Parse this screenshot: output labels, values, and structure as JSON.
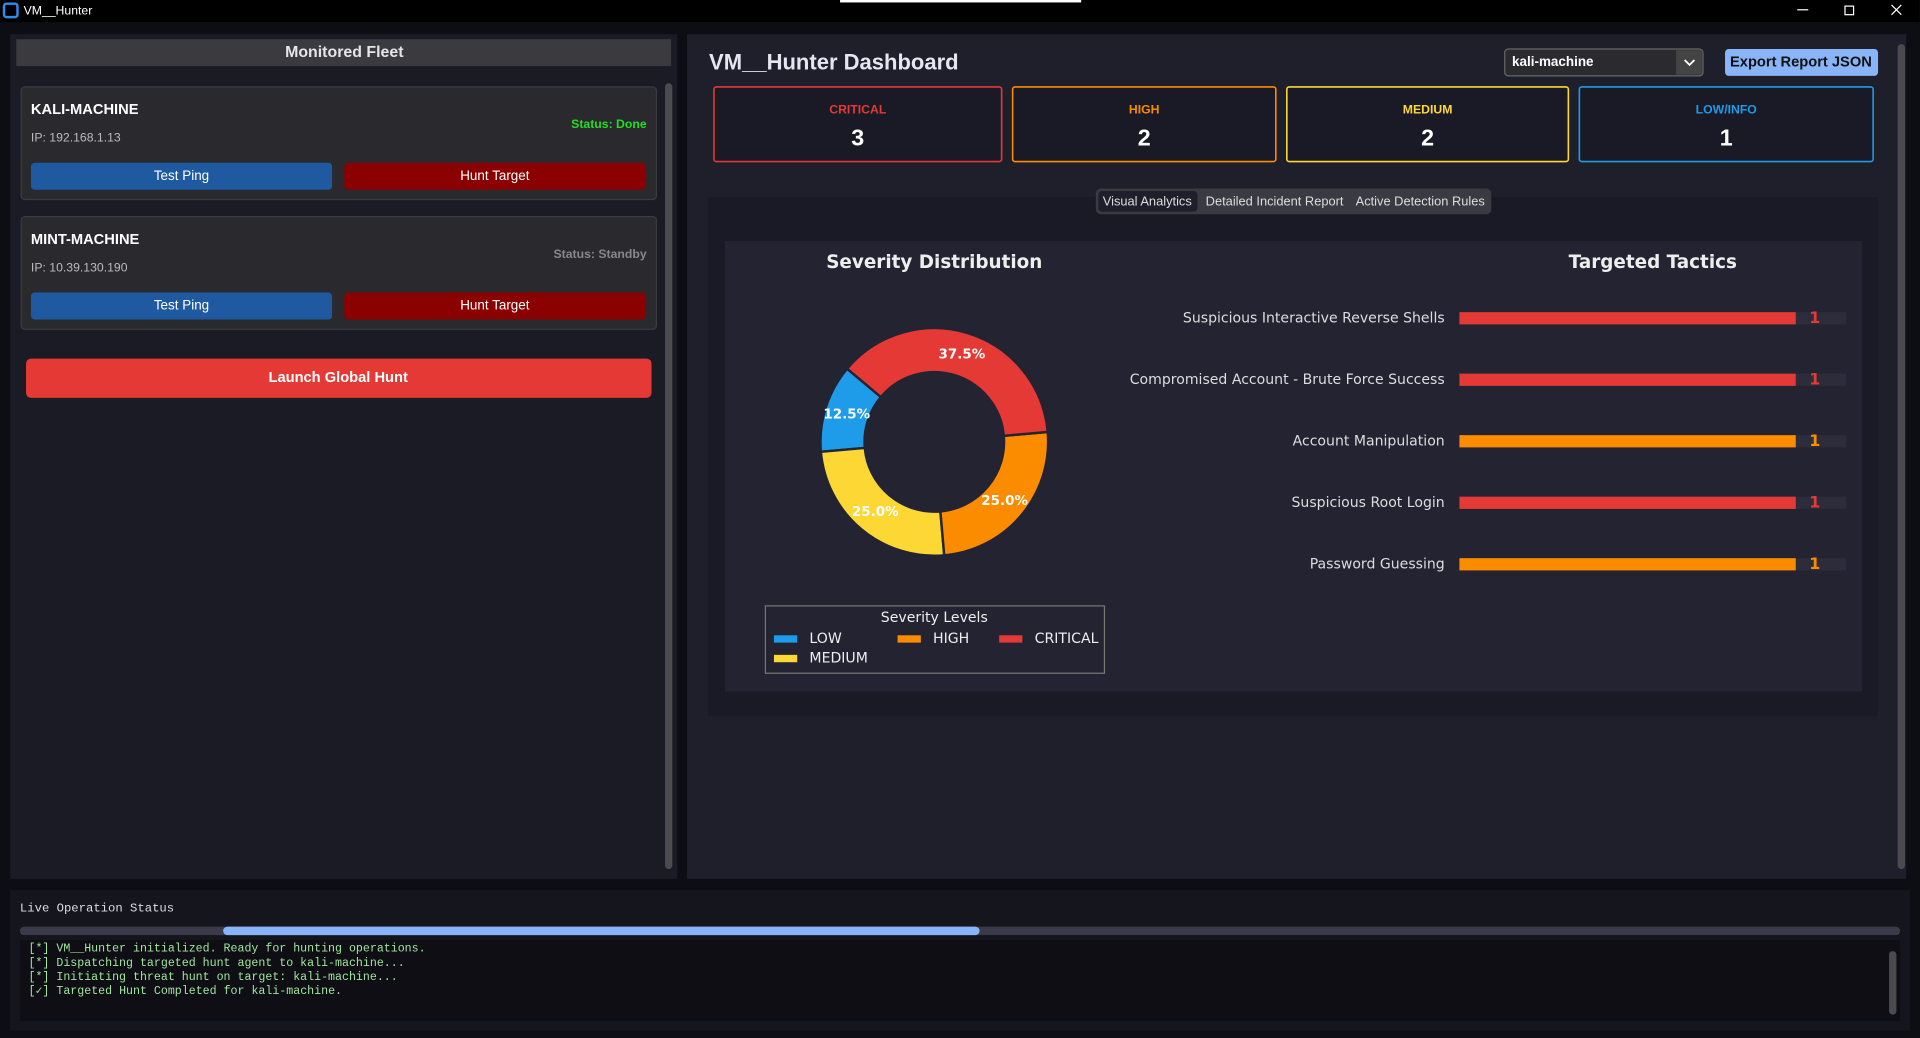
{
  "window": {
    "title": "VM__Hunter"
  },
  "fleet": {
    "title": "Monitored Fleet",
    "machines": [
      {
        "name": "KALI-MACHINE",
        "ip": "IP: 192.168.1.13",
        "status": "Status: Done",
        "ping": "Test Ping",
        "hunt": "Hunt Target"
      },
      {
        "name": "MINT-MACHINE",
        "ip": "IP: 10.39.130.190",
        "status": "Status: Standby",
        "ping": "Test Ping",
        "hunt": "Hunt Target"
      }
    ],
    "launch": "Launch Global Hunt"
  },
  "dashboard": {
    "title": "VM__Hunter Dashboard",
    "target": "kali-machine",
    "export": "Export Report JSON",
    "severity_cards": [
      {
        "label": "CRITICAL",
        "count": 3,
        "color": "#e53935"
      },
      {
        "label": "HIGH",
        "count": 2,
        "color": "#fb8c00"
      },
      {
        "label": "MEDIUM",
        "count": 2,
        "color": "#fdd835"
      },
      {
        "label": "LOW/INFO",
        "count": 1,
        "color": "#1e9be9"
      }
    ],
    "tabs": [
      "Visual Analytics",
      "Detailed Incident Report",
      "Active Detection Rules"
    ]
  },
  "chart_data": [
    {
      "type": "donut",
      "title": "Severity Distribution",
      "categories": [
        "LOW",
        "MEDIUM",
        "HIGH",
        "CRITICAL"
      ],
      "values": [
        12.5,
        25.0,
        25.0,
        37.5
      ],
      "value_labels": [
        "12.5%",
        "25.0%",
        "25.0%",
        "37.5%"
      ],
      "colors": [
        "#1e9be9",
        "#fdd835",
        "#fb8c00",
        "#e53935"
      ],
      "legend_title": "Severity Levels",
      "legend": "lower center"
    },
    {
      "type": "barh",
      "title": "Targeted Tactics",
      "categories": [
        "Suspicious Interactive Reverse Shells",
        "Compromised Account - Brute Force Success",
        "Account Manipulation",
        "Suspicious Root Login",
        "Password Guessing"
      ],
      "values": [
        1,
        1,
        1,
        1,
        1
      ],
      "colors": [
        "#e53935",
        "#e53935",
        "#fb8c00",
        "#e53935",
        "#fb8c00"
      ],
      "xlim": [
        0,
        1.15
      ]
    }
  ],
  "status": {
    "title": "Live Operation Status",
    "log": [
      "[*] VM__Hunter initialized. Ready for hunting operations.",
      "[*] Dispatching targeted hunt agent to kali-machine...",
      "[*] Initiating threat hunt on target: kali-machine...",
      "[✓] Targeted Hunt Completed for kali-machine."
    ]
  }
}
